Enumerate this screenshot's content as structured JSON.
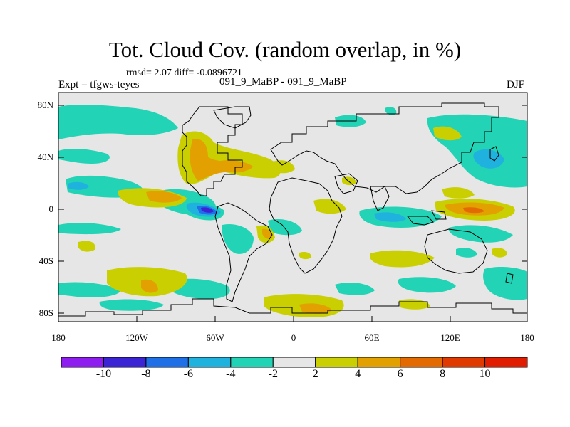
{
  "title": "Tot. Cloud Cov. (random overlap, in %)",
  "stats": "rmsd= 2.07 diff= -0.0896721",
  "left_label": "Expt = tfgws-teyes",
  "center_label": "091_9_MaBP - 091_9_MaBP",
  "right_label": "DJF",
  "lat_ticks": [
    "80N",
    "40N",
    "0",
    "40S",
    "80S"
  ],
  "lon_ticks": [
    "180",
    "120W",
    "60W",
    "0",
    "60E",
    "120E",
    "180"
  ],
  "colorbar": {
    "labels": [
      "-10",
      "-8",
      "-6",
      "-4",
      "-2",
      "2",
      "4",
      "6",
      "8",
      "10"
    ],
    "colors": [
      "#8e1df0",
      "#3a24d4",
      "#1f6fe6",
      "#20b2df",
      "#22d3b5",
      "#e6e6e6",
      "#c9cf00",
      "#e2a100",
      "#e26a00",
      "#e03a00",
      "#e01d00"
    ]
  },
  "colors": {
    "background_field": "#e6e6e6",
    "coast": "#000000"
  }
}
